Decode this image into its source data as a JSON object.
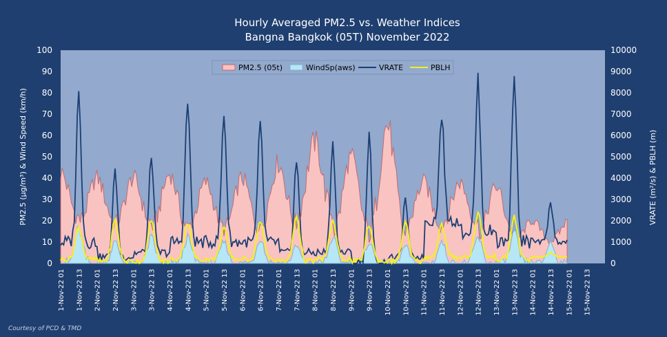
{
  "chart_data": {
    "type": "line",
    "title": [
      "Hourly Averaged  PM2.5  vs.  Weather Indices",
      "Bangna Bangkok (05T) November  2022"
    ],
    "ylabel_left": "PM2.5 (µg/m³)  &  Wind Speed (km/h)",
    "ylabel_right": "VRATE (m²/s) & PBLH (m)",
    "ylim_left": [
      0,
      100
    ],
    "ylim_right": [
      0,
      10000
    ],
    "yticks_left": [
      "0",
      "10",
      "20",
      "30",
      "40",
      "50",
      "60",
      "70",
      "80",
      "90",
      "100"
    ],
    "yticks_right": [
      "0",
      "1000",
      "2000",
      "3000",
      "4000",
      "5000",
      "6000",
      "7000",
      "8000",
      "9000",
      "10000"
    ],
    "x_ticks": [
      "1-Nov-22 01",
      "1-Nov-22 13",
      "2-Nov-22 01",
      "2-Nov-22 13",
      "3-Nov-22 01",
      "3-Nov-22 13",
      "4-Nov-22 01",
      "4-Nov-22 13",
      "5-Nov-22 01",
      "5-Nov-22 13",
      "6-Nov-22 01",
      "6-Nov-22 13",
      "7-Nov-22 01",
      "7-Nov-22 13",
      "8-Nov-22 01",
      "8-Nov-22 13",
      "9-Nov-22 01",
      "9-Nov-22 13",
      "10-Nov-22 01",
      "10-Nov-22 13",
      "11-Nov-22 01",
      "11-Nov-22 13",
      "12-Nov-22 01",
      "12-Nov-22 13",
      "13-Nov-22 01",
      "13-Nov-22 13",
      "14-Nov-22 01",
      "14-Nov-22 13",
      "15-Nov-22 01",
      "15-Nov-22 13"
    ],
    "grid": false,
    "legend_position": "top-center",
    "colors": {
      "plot_bg": "#93a9cd",
      "pm25_fill": "#f9c3c2",
      "pm25_edge": "#c46a6a",
      "wind_fill": "#b7e6f7",
      "wind_edge": "#7fb3cc",
      "vrate": "#1a3f73",
      "pblh": "#f2f21a"
    },
    "series": [
      {
        "name": "PM2.5 (05t)",
        "axis": "left",
        "style": "area",
        "daily_peak_hour": 1,
        "x_day": [
          1,
          2,
          3,
          4,
          5,
          6,
          7,
          8,
          9,
          10,
          11,
          12,
          13,
          14
        ],
        "daily_max": [
          43,
          40,
          40,
          42,
          38,
          40,
          47,
          57,
          50,
          65,
          38,
          38,
          36,
          20
        ],
        "daily_min": [
          20,
          18,
          17,
          15,
          15,
          14,
          16,
          20,
          12,
          10,
          16,
          17,
          12,
          10
        ]
      },
      {
        "name": "WindSp(aws)",
        "axis": "left",
        "style": "area",
        "daily_peak_hour": 13,
        "x_day": [
          1,
          2,
          3,
          4,
          5,
          6,
          7,
          8,
          9,
          10,
          11,
          12,
          13,
          14
        ],
        "daily_max": [
          16,
          10,
          12,
          12,
          10,
          12,
          8,
          12,
          10,
          8,
          10,
          12,
          14,
          10
        ]
      },
      {
        "name": "VRATE",
        "axis": "right",
        "style": "line",
        "daily_peak_hour": 13,
        "x_day": [
          1,
          2,
          3,
          4,
          5,
          6,
          7,
          8,
          9,
          10,
          11,
          12,
          13,
          14
        ],
        "daily_max": [
          8000,
          4300,
          5000,
          7600,
          7000,
          6500,
          4800,
          5600,
          6000,
          3000,
          7000,
          8600,
          9000,
          2800
        ],
        "daily_min": [
          1000,
          300,
          500,
          1000,
          1000,
          1000,
          500,
          500,
          0,
          300,
          2000,
          1500,
          1000,
          1000
        ]
      },
      {
        "name": "PBLH",
        "axis": "right",
        "style": "line",
        "daily_peak_hour": 13,
        "x_day": [
          1,
          2,
          3,
          4,
          5,
          6,
          7,
          8,
          9,
          10,
          11,
          12,
          13,
          14
        ],
        "daily_max": [
          1700,
          2000,
          2000,
          1900,
          1700,
          2000,
          2200,
          2000,
          1800,
          1900,
          1800,
          2400,
          2200,
          500
        ],
        "daily_min": [
          200,
          100,
          100,
          200,
          200,
          200,
          100,
          200,
          100,
          100,
          300,
          300,
          200,
          300
        ]
      }
    ]
  },
  "credit": "Courtesy of PCD & TMD"
}
